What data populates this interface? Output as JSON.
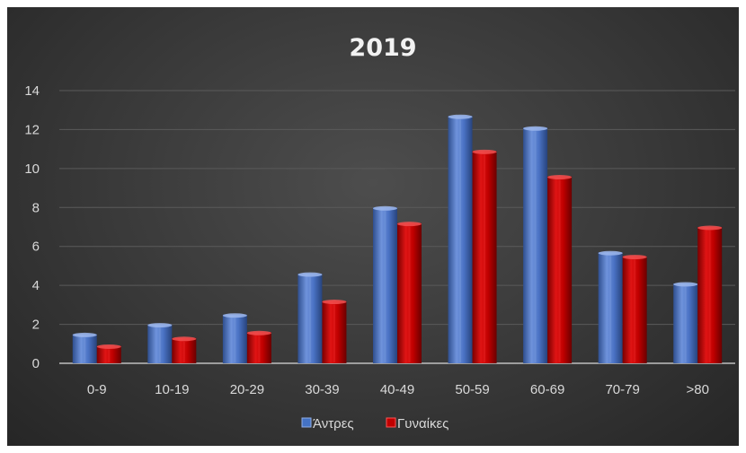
{
  "chart_data": {
    "type": "bar",
    "title": "2019",
    "categories": [
      "0-9",
      "10-19",
      "20-29",
      "30-39",
      "40-49",
      "50-59",
      "60-69",
      "70-79",
      ">80"
    ],
    "series": [
      {
        "name": "Άντρες",
        "values": [
          1.5,
          2.0,
          2.5,
          4.6,
          8.0,
          12.7,
          12.1,
          5.7,
          4.1
        ],
        "color": "#4472c4"
      },
      {
        "name": "Γυναίκες",
        "values": [
          0.9,
          1.3,
          1.6,
          3.2,
          7.2,
          10.9,
          9.6,
          5.5,
          7.0
        ],
        "color": "#c00000"
      }
    ],
    "ylim": [
      0,
      14
    ],
    "yticks": [
      0,
      2,
      4,
      6,
      8,
      10,
      12,
      14
    ],
    "grid": true,
    "legend_position": "bottom",
    "xlabel": "",
    "ylabel": ""
  }
}
